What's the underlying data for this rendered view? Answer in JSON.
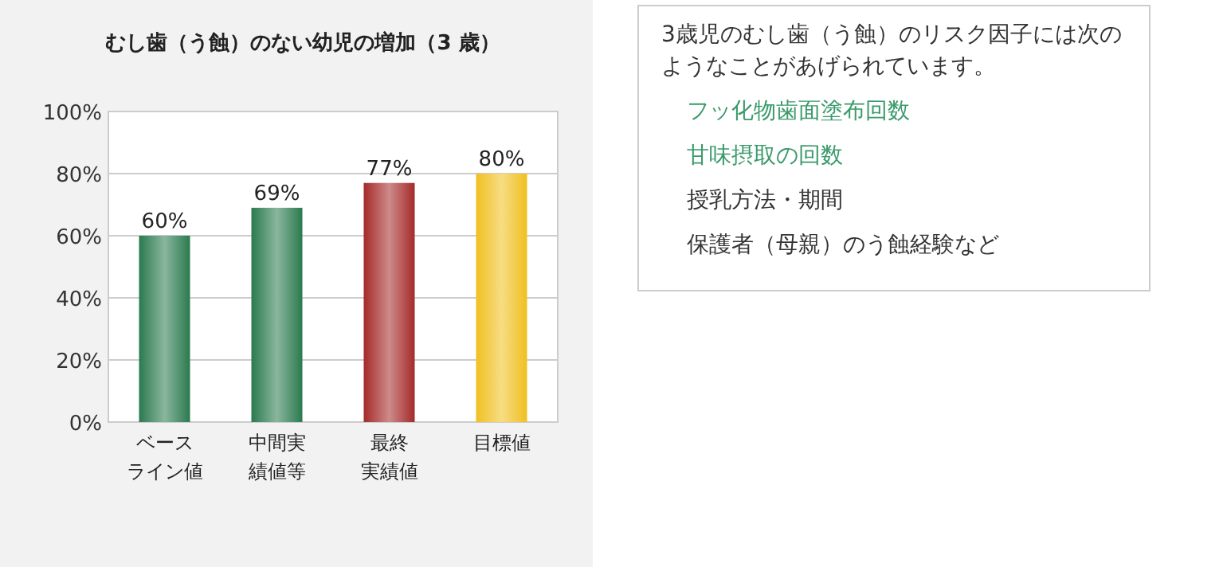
{
  "chart_data": [
    {
      "type": "bar",
      "title": "むし歯（う蝕）のない幼児の増加（3 歳）",
      "categories": [
        "ベースライン値",
        "中間実績値等",
        "最終実績値",
        "目標値"
      ],
      "values": [
        60,
        69,
        77,
        80
      ],
      "colors": [
        "#2a7a4e",
        "#2a7a4e",
        "#a52a2a",
        "#f0c020"
      ],
      "value_labels": [
        "60%",
        "69%",
        "77%",
        "80%"
      ],
      "ylim": [
        0,
        100
      ],
      "yticks": [
        {
          "value": 0,
          "label": "0%"
        },
        {
          "value": 20,
          "label": "20%"
        },
        {
          "value": 40,
          "label": "40%"
        },
        {
          "value": 60,
          "label": "60%"
        },
        {
          "value": 80,
          "label": "80%"
        },
        {
          "value": 100,
          "label": "100%"
        }
      ],
      "grid": "y"
    },
    {
      "type": "other",
      "annotations": [
        "3歳児のむし歯（う蝕）のリスク因子には次のようなことがあげられています。",
        "フッ化物歯面塗布回数",
        "甘味摂取の回数",
        "授乳方法・期間",
        "保護者（母親）のう蝕経験など"
      ]
    }
  ]
}
